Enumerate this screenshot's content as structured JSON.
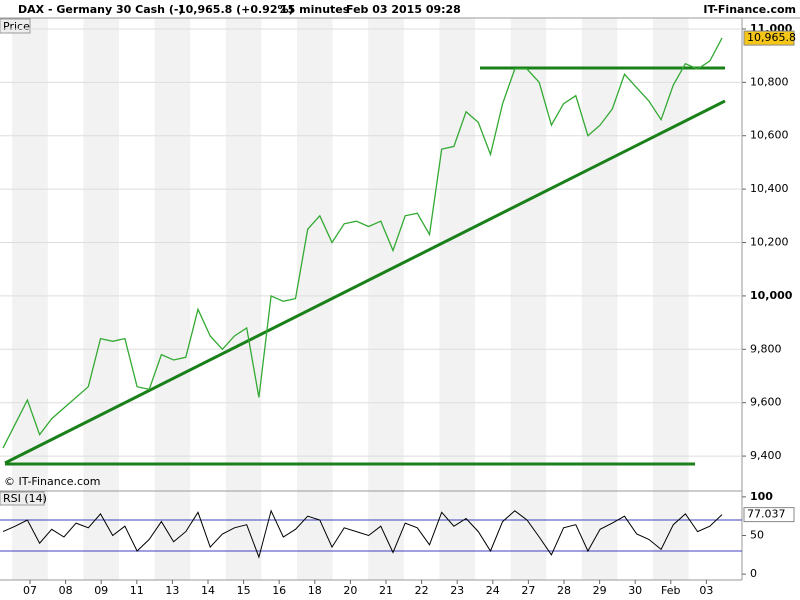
{
  "header": {
    "instrument": "DAX - Germany 30 Cash (-)",
    "quote": "10,965.8 (+0.92%)",
    "interval": "15 minutes",
    "timestamp": "Feb 03 2015 09:28",
    "brand": "IT-Finance.com"
  },
  "x_axis": {
    "labels": [
      "07",
      "08",
      "09",
      "11",
      "13",
      "14",
      "15",
      "16",
      "18",
      "20",
      "21",
      "22",
      "23",
      "24",
      "27",
      "28",
      "29",
      "30",
      "Feb",
      "03"
    ]
  },
  "chart_data": [
    {
      "type": "line",
      "title": "Price",
      "watermark": "© IT-Finance.com",
      "color": "#33aa33",
      "values": [
        9430,
        9520,
        9610,
        9480,
        9540,
        9580,
        9620,
        9660,
        9840,
        9830,
        9840,
        9660,
        9650,
        9780,
        9760,
        9770,
        9950,
        9850,
        9800,
        9850,
        9880,
        9620,
        10000,
        9980,
        9990,
        10250,
        10300,
        10200,
        10270,
        10280,
        10260,
        10280,
        10170,
        10300,
        10310,
        10230,
        10550,
        10560,
        10690,
        10650,
        10530,
        10720,
        10850,
        10850,
        10800,
        10640,
        10720,
        10750,
        10600,
        10640,
        10700,
        10830,
        10780,
        10730,
        10660,
        10790,
        10870,
        10850,
        10880,
        10965.8
      ],
      "last_label": "10,965.8",
      "ylim": [
        9273,
        11041
      ],
      "yticks": [
        {
          "value": 9400,
          "label": "9,400"
        },
        {
          "value": 9600,
          "label": "9,600"
        },
        {
          "value": 9800,
          "label": "9,800"
        },
        {
          "value": 10000,
          "label": "10,000"
        },
        {
          "value": 10200,
          "label": "10,200"
        },
        {
          "value": 10400,
          "label": "10,400"
        },
        {
          "value": 10600,
          "label": "10,600"
        },
        {
          "value": 10800,
          "label": "10,800"
        },
        {
          "value": 11000,
          "label": "11,000"
        }
      ],
      "grid": true
    },
    {
      "type": "line",
      "title": "RSI (14)",
      "color": "#000000",
      "values": [
        55,
        62,
        70,
        40,
        58,
        48,
        66,
        60,
        78,
        50,
        62,
        30,
        45,
        68,
        42,
        55,
        80,
        35,
        52,
        60,
        64,
        22,
        82,
        48,
        58,
        75,
        70,
        35,
        60,
        55,
        50,
        62,
        28,
        66,
        60,
        38,
        80,
        62,
        72,
        55,
        30,
        68,
        82,
        70,
        48,
        25,
        60,
        64,
        30,
        58,
        66,
        75,
        52,
        45,
        32,
        64,
        78,
        55,
        62,
        77.037
      ],
      "last_label": "77.037",
      "levels": [
        30,
        70
      ],
      "ylim": [
        -5,
        105
      ],
      "yticks": [
        0,
        50,
        100
      ]
    }
  ]
}
